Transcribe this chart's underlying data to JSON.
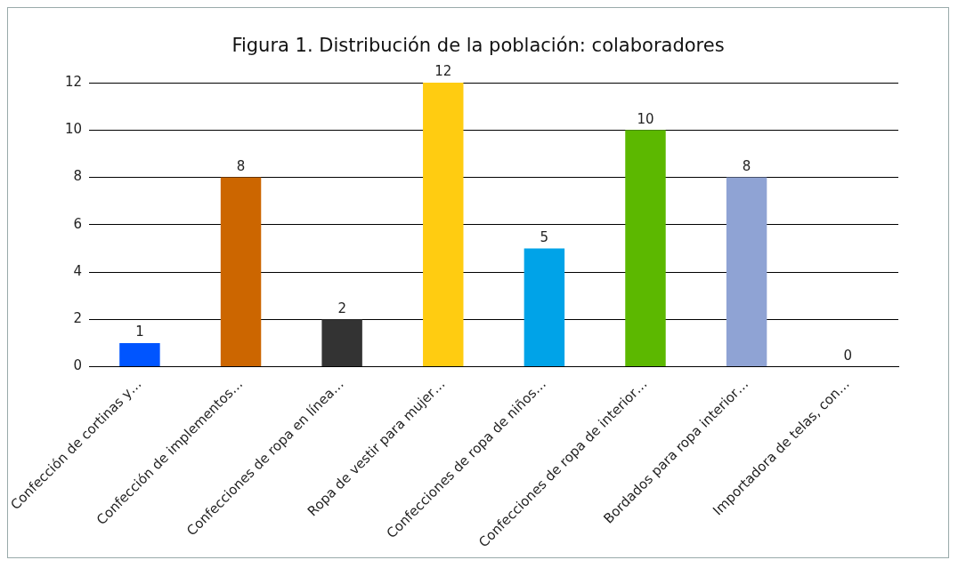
{
  "chart_data": {
    "type": "bar",
    "title": "Figura 1. Distribución de la población: colaboradores",
    "categories": [
      "Confección de cortinas y…",
      "Confección de implementos…",
      "Confecciones de ropa en línea…",
      "Ropa de vestir para mujer…",
      "Confecciones de ropa de niños…",
      "Confecciones de ropa de interior…",
      "Bordados para ropa interior…",
      "Importadora de telas, con…"
    ],
    "values": [
      1,
      8,
      2,
      12,
      5,
      10,
      8,
      0
    ],
    "colors": [
      "#0055ff",
      "#cc6600",
      "#333333",
      "#ffcc11",
      "#00a3e8",
      "#5cb800",
      "#8fa3d4",
      "#c06000"
    ],
    "ylim": [
      0,
      12
    ],
    "yticks": [
      0,
      2,
      4,
      6,
      8,
      10,
      12
    ],
    "grid": "y",
    "legend": false,
    "data_labels": true
  }
}
